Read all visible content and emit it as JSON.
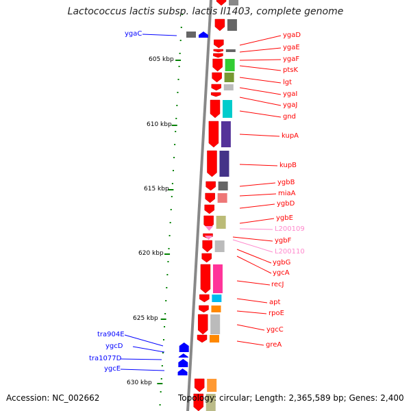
{
  "title": "Lactococcus lactis subsp. lactis Il1403, complete genome",
  "accession": "Accession: NC_002662",
  "topology": "Topology: circular; Length: 2,365,589 bp; Genes: 2,400",
  "ruler": [
    "605 kbp",
    "610 kbp",
    "615 kbp",
    "620 kbp",
    "625 kbp",
    "630 kbp"
  ],
  "colors": {
    "forward": "#ff0000",
    "reverse": "#0000ff",
    "trna": "#ff88cc",
    "ruler": "#008000",
    "backbone": "#888888"
  },
  "genes_right": [
    {
      "name": "ygaD"
    },
    {
      "name": "ygaE"
    },
    {
      "name": "ygaF"
    },
    {
      "name": "ptsK"
    },
    {
      "name": "lgt"
    },
    {
      "name": "ygaI"
    },
    {
      "name": "ygaJ"
    },
    {
      "name": "gnd"
    },
    {
      "name": "kupA"
    },
    {
      "name": "kupB"
    },
    {
      "name": "ygbB"
    },
    {
      "name": "miaA"
    },
    {
      "name": "ygbD"
    },
    {
      "name": "ygbE"
    },
    {
      "name": "L200109",
      "type": "trna"
    },
    {
      "name": "ygbF"
    },
    {
      "name": "L200110",
      "type": "trna"
    },
    {
      "name": "ygbG"
    },
    {
      "name": "ygcA"
    },
    {
      "name": "recJ"
    },
    {
      "name": "apt"
    },
    {
      "name": "rpoE"
    },
    {
      "name": "ygcC"
    },
    {
      "name": "greA"
    }
  ],
  "genes_left": [
    {
      "name": "ygaC"
    },
    {
      "name": "tra904E"
    },
    {
      "name": "ygcD"
    },
    {
      "name": "tra1077D"
    },
    {
      "name": "ygcE"
    }
  ]
}
